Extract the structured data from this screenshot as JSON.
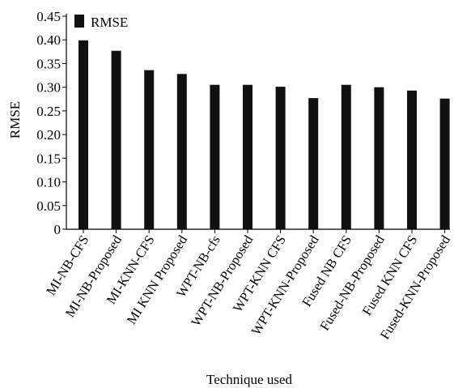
{
  "chart_data": {
    "type": "bar",
    "categories": [
      "MI-NB-CFS",
      "MI-NB-Proposed",
      "MI-KNN-CFS",
      "MI KNN Proposed",
      "WPT-NB-cfs",
      "WPT-NB-Proposed",
      "WPT-KNN CFS",
      "WPT-KNN-Proposed",
      "Fused NB CFS",
      "Fused-NB-Proposed",
      "Fused KNN CFS",
      "Fused-KNN-Proposed"
    ],
    "series": [
      {
        "name": "RMSE",
        "values": [
          0.399,
          0.377,
          0.336,
          0.328,
          0.305,
          0.305,
          0.301,
          0.277,
          0.305,
          0.3,
          0.293,
          0.276
        ]
      }
    ],
    "ylabel": "RMSE",
    "xlabel": "Technique used",
    "ylim": [
      0,
      0.45
    ],
    "yticks": [
      "0",
      "0.05",
      "0.10",
      "0.15",
      "0.20",
      "0.25",
      "0.30",
      "0.35",
      "0.40",
      "0.45"
    ],
    "grid": false,
    "legend": {
      "position": "top-left",
      "entries": [
        "RMSE"
      ]
    },
    "colors": {
      "bar": "#111111",
      "axis": "#000000",
      "background": "#ffffff"
    }
  }
}
